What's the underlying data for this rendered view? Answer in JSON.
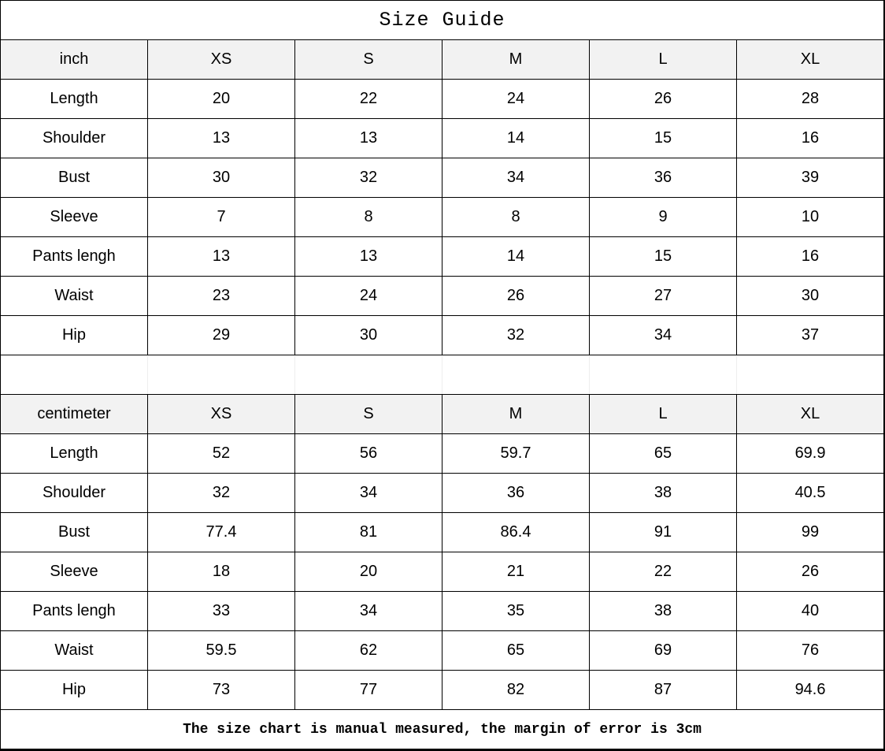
{
  "title": "Size Guide",
  "sizes": [
    "XS",
    "S",
    "M",
    "L",
    "XL"
  ],
  "inch": {
    "unit_label": "inch",
    "rows": [
      {
        "label": "Length",
        "values": [
          "20",
          "22",
          "24",
          "26",
          "28"
        ]
      },
      {
        "label": "Shoulder",
        "values": [
          "13",
          "13",
          "14",
          "15",
          "16"
        ]
      },
      {
        "label": "Bust",
        "values": [
          "30",
          "32",
          "34",
          "36",
          "39"
        ]
      },
      {
        "label": "Sleeve",
        "values": [
          "7",
          "8",
          "8",
          "9",
          "10"
        ]
      },
      {
        "label": "Pants lengh",
        "values": [
          "13",
          "13",
          "14",
          "15",
          "16"
        ]
      },
      {
        "label": "Waist",
        "values": [
          "23",
          "24",
          "26",
          "27",
          "30"
        ]
      },
      {
        "label": "Hip",
        "values": [
          "29",
          "30",
          "32",
          "34",
          "37"
        ]
      }
    ]
  },
  "cm": {
    "unit_label": "centimeter",
    "rows": [
      {
        "label": "Length",
        "values": [
          "52",
          "56",
          "59.7",
          "65",
          "69.9"
        ]
      },
      {
        "label": "Shoulder",
        "values": [
          "32",
          "34",
          "36",
          "38",
          "40.5"
        ]
      },
      {
        "label": "Bust",
        "values": [
          "77.4",
          "81",
          "86.4",
          "91",
          "99"
        ]
      },
      {
        "label": "Sleeve",
        "values": [
          "18",
          "20",
          "21",
          "22",
          "26"
        ]
      },
      {
        "label": "Pants lengh",
        "values": [
          "33",
          "34",
          "35",
          "38",
          "40"
        ]
      },
      {
        "label": "Waist",
        "values": [
          "59.5",
          "62",
          "65",
          "69",
          "76"
        ]
      },
      {
        "label": "Hip",
        "values": [
          "73",
          "77",
          "82",
          "87",
          "94.6"
        ]
      }
    ]
  },
  "footer": "The size chart is manual measured, the margin of error is 3cm",
  "colors": {
    "header_bg": "#f2f2f2",
    "border": "#000000"
  }
}
